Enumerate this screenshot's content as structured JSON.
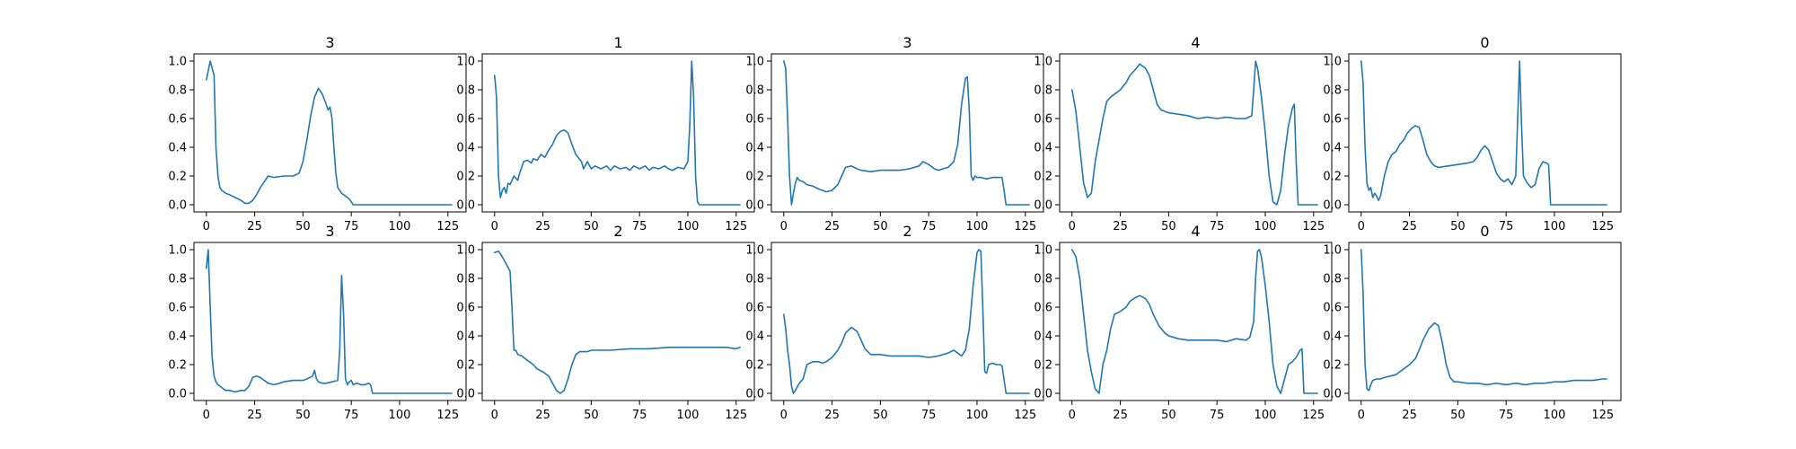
{
  "figure": {
    "background": "#ffffff",
    "line_color": "#1f77b4"
  },
  "chart_data": [
    {
      "type": "line",
      "title": "3",
      "xlim": [
        -6.4,
        134.4
      ],
      "ylim": [
        -0.05,
        1.05
      ],
      "xticks": [
        0,
        25,
        50,
        75,
        100,
        125
      ],
      "yticks": [
        0.0,
        0.2,
        0.4,
        0.6,
        0.8,
        1.0
      ],
      "x": [
        0,
        2,
        4,
        5,
        6,
        7,
        8,
        10,
        12,
        15,
        18,
        20,
        22,
        24,
        26,
        28,
        30,
        32,
        35,
        40,
        45,
        48,
        50,
        52,
        54,
        56,
        58,
        60,
        62,
        63,
        64,
        65,
        66,
        67,
        68,
        70,
        72,
        74,
        75,
        76,
        78,
        80,
        100,
        127
      ],
      "y": [
        0.87,
        1.0,
        0.9,
        0.4,
        0.2,
        0.12,
        0.1,
        0.08,
        0.07,
        0.05,
        0.03,
        0.01,
        0.01,
        0.03,
        0.07,
        0.12,
        0.16,
        0.2,
        0.19,
        0.2,
        0.2,
        0.22,
        0.3,
        0.45,
        0.62,
        0.75,
        0.81,
        0.77,
        0.7,
        0.66,
        0.68,
        0.6,
        0.4,
        0.22,
        0.12,
        0.08,
        0.06,
        0.04,
        0.02,
        0.0,
        0.0,
        0.0,
        0.0,
        0.0
      ]
    },
    {
      "type": "line",
      "title": "1",
      "xlim": [
        -6.4,
        134.4
      ],
      "ylim": [
        -0.05,
        1.05
      ],
      "xticks": [
        0,
        25,
        50,
        75,
        100,
        125
      ],
      "yticks": [
        0.0,
        0.2,
        0.4,
        0.6,
        0.8,
        1.0
      ],
      "x": [
        0,
        1,
        2,
        3,
        4,
        5,
        6,
        7,
        8,
        10,
        12,
        13,
        15,
        17,
        19,
        20,
        22,
        24,
        26,
        28,
        30,
        32,
        34,
        36,
        38,
        40,
        42,
        45,
        46,
        48,
        50,
        52,
        55,
        58,
        60,
        62,
        65,
        68,
        70,
        72,
        75,
        78,
        80,
        82,
        85,
        88,
        90,
        92,
        95,
        98,
        100,
        101,
        102,
        103,
        104,
        105,
        106,
        110,
        127
      ],
      "y": [
        0.9,
        0.75,
        0.2,
        0.05,
        0.1,
        0.12,
        0.08,
        0.15,
        0.14,
        0.2,
        0.17,
        0.22,
        0.3,
        0.31,
        0.29,
        0.32,
        0.31,
        0.35,
        0.33,
        0.38,
        0.42,
        0.48,
        0.51,
        0.52,
        0.5,
        0.42,
        0.35,
        0.3,
        0.25,
        0.3,
        0.25,
        0.27,
        0.25,
        0.27,
        0.24,
        0.27,
        0.25,
        0.26,
        0.24,
        0.27,
        0.25,
        0.27,
        0.24,
        0.26,
        0.25,
        0.27,
        0.25,
        0.24,
        0.26,
        0.25,
        0.3,
        0.55,
        1.0,
        0.75,
        0.2,
        0.02,
        0.0,
        0.0,
        0.0
      ]
    },
    {
      "type": "line",
      "title": "3",
      "xlim": [
        -6.4,
        134.4
      ],
      "ylim": [
        -0.05,
        1.05
      ],
      "xticks": [
        0,
        25,
        50,
        75,
        100,
        125
      ],
      "yticks": [
        0.0,
        0.2,
        0.4,
        0.6,
        0.8,
        1.0
      ],
      "x": [
        0,
        1,
        2,
        3,
        4,
        5,
        6,
        7,
        8,
        10,
        12,
        15,
        18,
        20,
        22,
        25,
        28,
        30,
        32,
        35,
        38,
        40,
        45,
        50,
        55,
        60,
        65,
        70,
        72,
        75,
        78,
        80,
        85,
        88,
        90,
        92,
        94,
        95,
        96,
        97,
        98,
        99,
        100,
        102,
        105,
        108,
        110,
        113,
        114,
        115,
        127
      ],
      "y": [
        1.0,
        0.95,
        0.6,
        0.2,
        0.0,
        0.08,
        0.15,
        0.19,
        0.17,
        0.16,
        0.14,
        0.13,
        0.11,
        0.1,
        0.09,
        0.1,
        0.14,
        0.2,
        0.26,
        0.27,
        0.25,
        0.24,
        0.23,
        0.24,
        0.24,
        0.24,
        0.25,
        0.27,
        0.3,
        0.28,
        0.25,
        0.24,
        0.26,
        0.3,
        0.42,
        0.7,
        0.88,
        0.89,
        0.65,
        0.2,
        0.17,
        0.2,
        0.19,
        0.19,
        0.18,
        0.19,
        0.19,
        0.19,
        0.1,
        0.0,
        0.0
      ]
    },
    {
      "type": "line",
      "title": "4",
      "xlim": [
        -6.4,
        134.4
      ],
      "ylim": [
        -0.05,
        1.05
      ],
      "xticks": [
        0,
        25,
        50,
        75,
        100,
        125
      ],
      "yticks": [
        0.0,
        0.2,
        0.4,
        0.6,
        0.8,
        1.0
      ],
      "x": [
        0,
        2,
        4,
        6,
        8,
        10,
        12,
        14,
        16,
        18,
        20,
        22,
        25,
        28,
        30,
        32,
        34,
        35,
        36,
        38,
        40,
        42,
        44,
        46,
        48,
        50,
        55,
        60,
        65,
        70,
        75,
        80,
        85,
        90,
        93,
        94,
        95,
        96,
        98,
        100,
        102,
        104,
        106,
        108,
        110,
        112,
        114,
        115,
        116,
        117,
        127
      ],
      "y": [
        0.8,
        0.65,
        0.4,
        0.15,
        0.05,
        0.08,
        0.3,
        0.45,
        0.6,
        0.72,
        0.75,
        0.77,
        0.8,
        0.85,
        0.9,
        0.93,
        0.96,
        0.98,
        0.97,
        0.95,
        0.9,
        0.8,
        0.7,
        0.66,
        0.65,
        0.64,
        0.63,
        0.62,
        0.6,
        0.61,
        0.6,
        0.61,
        0.6,
        0.6,
        0.62,
        0.8,
        1.0,
        0.95,
        0.75,
        0.5,
        0.2,
        0.02,
        0.0,
        0.1,
        0.35,
        0.55,
        0.67,
        0.7,
        0.3,
        0.0,
        0.0
      ]
    },
    {
      "type": "line",
      "title": "0",
      "xlim": [
        -6.4,
        134.4
      ],
      "ylim": [
        -0.05,
        1.05
      ],
      "xticks": [
        0,
        25,
        50,
        75,
        100,
        125
      ],
      "yticks": [
        0.0,
        0.2,
        0.4,
        0.6,
        0.8,
        1.0
      ],
      "x": [
        0,
        1,
        2,
        3,
        4,
        5,
        6,
        7,
        8,
        9,
        10,
        12,
        14,
        16,
        18,
        20,
        22,
        24,
        26,
        28,
        30,
        32,
        34,
        36,
        38,
        40,
        45,
        50,
        55,
        58,
        60,
        62,
        64,
        66,
        68,
        70,
        72,
        74,
        76,
        78,
        80,
        81,
        82,
        83,
        84,
        86,
        88,
        90,
        92,
        94,
        96,
        97,
        98,
        100,
        127
      ],
      "y": [
        1.0,
        0.85,
        0.4,
        0.15,
        0.1,
        0.12,
        0.05,
        0.08,
        0.06,
        0.03,
        0.06,
        0.2,
        0.3,
        0.35,
        0.37,
        0.42,
        0.45,
        0.5,
        0.53,
        0.55,
        0.54,
        0.45,
        0.35,
        0.3,
        0.27,
        0.26,
        0.27,
        0.28,
        0.29,
        0.3,
        0.33,
        0.38,
        0.41,
        0.38,
        0.3,
        0.22,
        0.18,
        0.16,
        0.18,
        0.14,
        0.2,
        0.6,
        1.0,
        0.55,
        0.2,
        0.15,
        0.12,
        0.14,
        0.25,
        0.3,
        0.29,
        0.28,
        0.0,
        0.0,
        0.0
      ]
    },
    {
      "type": "line",
      "title": "3",
      "xlim": [
        -6.4,
        134.4
      ],
      "ylim": [
        -0.05,
        1.05
      ],
      "xticks": [
        0,
        25,
        50,
        75,
        100,
        125
      ],
      "yticks": [
        0.0,
        0.2,
        0.4,
        0.6,
        0.8,
        1.0
      ],
      "x": [
        0,
        1,
        2,
        3,
        4,
        5,
        6,
        8,
        10,
        12,
        15,
        18,
        20,
        22,
        24,
        26,
        28,
        30,
        32,
        35,
        38,
        40,
        45,
        50,
        52,
        55,
        56,
        57,
        58,
        60,
        62,
        65,
        68,
        69,
        70,
        71,
        72,
        73,
        74,
        75,
        76,
        78,
        80,
        82,
        84,
        85,
        86,
        100,
        127
      ],
      "y": [
        0.87,
        1.0,
        0.6,
        0.25,
        0.12,
        0.08,
        0.06,
        0.04,
        0.02,
        0.02,
        0.01,
        0.02,
        0.02,
        0.05,
        0.11,
        0.12,
        0.11,
        0.09,
        0.07,
        0.06,
        0.07,
        0.08,
        0.09,
        0.09,
        0.1,
        0.12,
        0.16,
        0.1,
        0.08,
        0.07,
        0.07,
        0.08,
        0.09,
        0.3,
        0.82,
        0.55,
        0.1,
        0.06,
        0.08,
        0.09,
        0.06,
        0.07,
        0.06,
        0.06,
        0.07,
        0.06,
        0.0,
        0.0,
        0.0
      ]
    },
    {
      "type": "line",
      "title": "2",
      "xlim": [
        -6.4,
        134.4
      ],
      "ylim": [
        -0.05,
        1.05
      ],
      "xticks": [
        0,
        25,
        50,
        75,
        100,
        125
      ],
      "yticks": [
        0.0,
        0.2,
        0.4,
        0.6,
        0.8,
        1.0
      ],
      "x": [
        0,
        2,
        4,
        6,
        8,
        9,
        10,
        11,
        12,
        14,
        16,
        18,
        20,
        22,
        25,
        28,
        30,
        32,
        34,
        36,
        38,
        40,
        42,
        44,
        46,
        48,
        50,
        60,
        70,
        80,
        90,
        100,
        110,
        120,
        125,
        127
      ],
      "y": [
        0.98,
        0.99,
        0.95,
        0.9,
        0.85,
        0.6,
        0.3,
        0.3,
        0.27,
        0.26,
        0.24,
        0.22,
        0.2,
        0.17,
        0.15,
        0.12,
        0.07,
        0.02,
        0.0,
        0.02,
        0.1,
        0.2,
        0.27,
        0.29,
        0.29,
        0.29,
        0.3,
        0.3,
        0.31,
        0.31,
        0.32,
        0.32,
        0.32,
        0.32,
        0.31,
        0.32
      ]
    },
    {
      "type": "line",
      "title": "2",
      "xlim": [
        -6.4,
        134.4
      ],
      "ylim": [
        -0.05,
        1.05
      ],
      "xticks": [
        0,
        25,
        50,
        75,
        100,
        125
      ],
      "yticks": [
        0.0,
        0.2,
        0.4,
        0.6,
        0.8,
        1.0
      ],
      "x": [
        0,
        1,
        2,
        3,
        4,
        5,
        6,
        8,
        10,
        12,
        15,
        18,
        20,
        22,
        25,
        28,
        30,
        32,
        35,
        38,
        40,
        42,
        45,
        50,
        55,
        60,
        65,
        70,
        75,
        80,
        85,
        88,
        90,
        92,
        94,
        96,
        98,
        100,
        101,
        102,
        103,
        104,
        105,
        106,
        108,
        110,
        112,
        113,
        115,
        118,
        120,
        127
      ],
      "y": [
        0.55,
        0.45,
        0.3,
        0.2,
        0.05,
        0.0,
        0.02,
        0.07,
        0.1,
        0.2,
        0.22,
        0.22,
        0.21,
        0.22,
        0.25,
        0.3,
        0.35,
        0.42,
        0.46,
        0.43,
        0.37,
        0.31,
        0.27,
        0.27,
        0.26,
        0.26,
        0.26,
        0.26,
        0.25,
        0.26,
        0.28,
        0.3,
        0.28,
        0.26,
        0.3,
        0.45,
        0.75,
        0.98,
        1.0,
        0.99,
        0.6,
        0.15,
        0.14,
        0.2,
        0.21,
        0.2,
        0.2,
        0.19,
        0.0,
        0.0,
        0.0,
        0.0
      ]
    },
    {
      "type": "line",
      "title": "4",
      "xlim": [
        -6.4,
        134.4
      ],
      "ylim": [
        -0.05,
        1.05
      ],
      "xticks": [
        0,
        25,
        50,
        75,
        100,
        125
      ],
      "yticks": [
        0.0,
        0.2,
        0.4,
        0.6,
        0.8,
        1.0
      ],
      "x": [
        0,
        2,
        4,
        6,
        8,
        10,
        12,
        14,
        16,
        18,
        20,
        22,
        25,
        28,
        30,
        32,
        35,
        38,
        40,
        42,
        45,
        48,
        50,
        55,
        60,
        65,
        70,
        75,
        80,
        85,
        90,
        92,
        94,
        95,
        96,
        97,
        98,
        100,
        102,
        104,
        106,
        108,
        110,
        112,
        114,
        116,
        118,
        119,
        120,
        127
      ],
      "y": [
        1.0,
        0.95,
        0.8,
        0.55,
        0.3,
        0.15,
        0.03,
        0.0,
        0.2,
        0.3,
        0.45,
        0.55,
        0.57,
        0.6,
        0.64,
        0.66,
        0.68,
        0.66,
        0.62,
        0.55,
        0.47,
        0.42,
        0.4,
        0.38,
        0.37,
        0.37,
        0.37,
        0.37,
        0.36,
        0.38,
        0.37,
        0.39,
        0.5,
        0.8,
        0.99,
        1.0,
        0.95,
        0.75,
        0.5,
        0.2,
        0.05,
        0.0,
        0.1,
        0.2,
        0.22,
        0.25,
        0.3,
        0.31,
        0.0,
        0.0
      ]
    },
    {
      "type": "line",
      "title": "0",
      "xlim": [
        -6.4,
        134.4
      ],
      "ylim": [
        -0.05,
        1.05
      ],
      "xticks": [
        0,
        25,
        50,
        75,
        100,
        125
      ],
      "yticks": [
        0.0,
        0.2,
        0.4,
        0.6,
        0.8,
        1.0
      ],
      "x": [
        0,
        1,
        2,
        3,
        4,
        5,
        6,
        8,
        10,
        12,
        15,
        18,
        20,
        22,
        25,
        28,
        30,
        32,
        35,
        38,
        40,
        42,
        44,
        46,
        48,
        50,
        55,
        60,
        65,
        70,
        75,
        80,
        85,
        90,
        95,
        100,
        105,
        110,
        115,
        120,
        125,
        127
      ],
      "y": [
        1.0,
        0.7,
        0.2,
        0.03,
        0.02,
        0.06,
        0.09,
        0.1,
        0.1,
        0.11,
        0.12,
        0.13,
        0.15,
        0.17,
        0.2,
        0.24,
        0.3,
        0.37,
        0.45,
        0.49,
        0.47,
        0.35,
        0.2,
        0.11,
        0.08,
        0.08,
        0.07,
        0.07,
        0.06,
        0.07,
        0.06,
        0.07,
        0.06,
        0.07,
        0.07,
        0.08,
        0.08,
        0.09,
        0.09,
        0.09,
        0.1,
        0.1
      ]
    }
  ]
}
